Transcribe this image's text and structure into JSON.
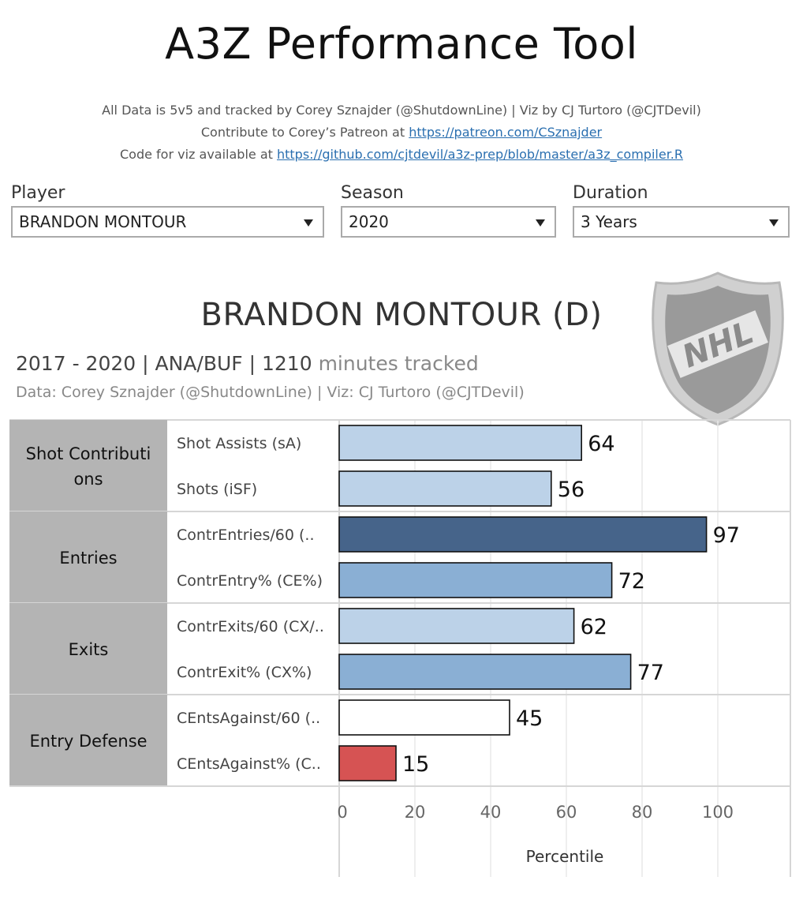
{
  "header": {
    "title": "A3Z Performance Tool",
    "credit_line": "All Data is 5v5 and tracked by Corey Sznajder (@ShutdownLine) | Viz by CJ Turtoro (@CJTDevil)",
    "patreon_prefix": "Contribute to Corey’s Patreon at ",
    "patreon_link": "https://patreon.com/CSznajder",
    "code_prefix": "Code for viz available at ",
    "code_link": "https://github.com/cjtdevil/a3z-prep/blob/master/a3z_compiler.R"
  },
  "filters": {
    "player": {
      "label": "Player",
      "value": "BRANDON MONTOUR"
    },
    "season": {
      "label": "Season",
      "value": "2020"
    },
    "duration": {
      "label": "Duration",
      "value": "3 Years"
    }
  },
  "player_card": {
    "name": "BRANDON MONTOUR (D)",
    "years": "2017 - 2020 |",
    "teams": "ANA/BUF",
    "minutes_prefix": "| 1210",
    "minutes_suffix": "minutes tracked",
    "source": "Data: Corey Sznajder (@ShutdownLine) | Viz: CJ Turtoro (@CJTDevil)",
    "logo_text": "NHL",
    "logo_icon": "nhl-shield-logo"
  },
  "chart_data": {
    "type": "bar",
    "orientation": "horizontal",
    "xlabel": "Percentile",
    "xlim": [
      0,
      120
    ],
    "xticks": [
      0,
      20,
      40,
      60,
      80,
      100
    ],
    "grid": true,
    "groups": [
      {
        "name": "Shot Contributions",
        "display_lines": [
          "Shot Contributi",
          "ons"
        ],
        "metrics": [
          {
            "label": "Shot Assists (sA)",
            "value": 64
          },
          {
            "label": "Shots (iSF)",
            "value": 56
          }
        ]
      },
      {
        "name": "Entries",
        "display_lines": [
          "Entries"
        ],
        "metrics": [
          {
            "label": "ContrEntries/60 (..",
            "value": 97
          },
          {
            "label": "ContrEntry% (CE%)",
            "value": 72
          }
        ]
      },
      {
        "name": "Exits",
        "display_lines": [
          "Exits"
        ],
        "metrics": [
          {
            "label": "ContrExits/60 (CX/..",
            "value": 62
          },
          {
            "label": "ContrExit% (CX%)",
            "value": 77
          }
        ]
      },
      {
        "name": "Entry Defense",
        "display_lines": [
          "Entry Defense"
        ],
        "metrics": [
          {
            "label": "CEntsAgainst/60 (..",
            "value": 45
          },
          {
            "label": "CEntsAgainst% (C..",
            "value": 15
          }
        ]
      }
    ],
    "color_scale": {
      "low": "#d65353",
      "neutral": "#ffffff",
      "light": "#bcd2e8",
      "mid": "#8aafd4",
      "high": "#46648a"
    },
    "group_header_color": "#b4b4b4"
  }
}
